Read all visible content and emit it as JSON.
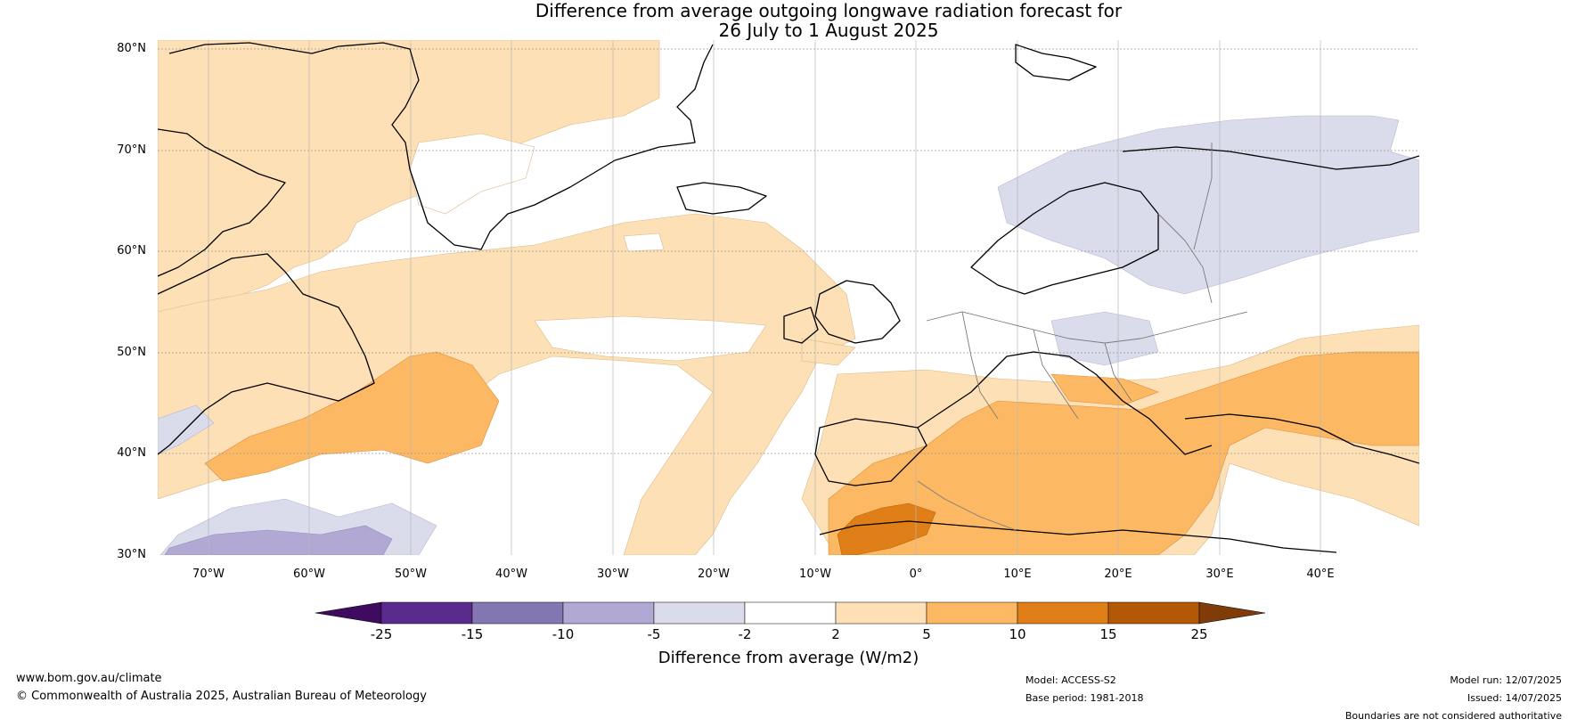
{
  "title": {
    "line1": "Difference from average outgoing longwave radiation forecast for",
    "line2": "26 July to 1 August 2025"
  },
  "map": {
    "lat_labels": [
      "80°N",
      "70°N",
      "60°N",
      "50°N",
      "40°N",
      "30°N"
    ],
    "lon_labels": [
      "70°W",
      "60°W",
      "50°W",
      "40°W",
      "30°W",
      "20°W",
      "10°W",
      "0°",
      "10°E",
      "20°E",
      "30°E",
      "40°E"
    ]
  },
  "colorbar": {
    "title": "Difference from average (W/m2)",
    "ticks": [
      "-25",
      "-15",
      "-10",
      "-5",
      "-2",
      "2",
      "5",
      "10",
      "15",
      "25"
    ],
    "colors": {
      "lt_-25": "#3f0b5f",
      "-25_-15": "#5a2a8c",
      "-15_-10": "#8277b3",
      "-10_-5": "#b1a9d3",
      "-5_-2": "#dadbeb",
      "-2_2": "#ffffff",
      "2_5": "#fde0b5",
      "5_10": "#fdb864",
      "10_15": "#e07f17",
      "15_25": "#b35806",
      "gt_25": "#7f3b08"
    }
  },
  "footer": {
    "website": "www.bom.gov.au/climate",
    "copyright": "© Commonwealth of Australia 2025, Australian Bureau of Meteorology",
    "model": "Model: ACCESS-S2",
    "base_period": "Base period: 1981-2018",
    "model_run": "Model run: 12/07/2025",
    "issued": "Issued: 14/07/2025",
    "disclaimer": "Boundaries are not considered authoritative"
  }
}
